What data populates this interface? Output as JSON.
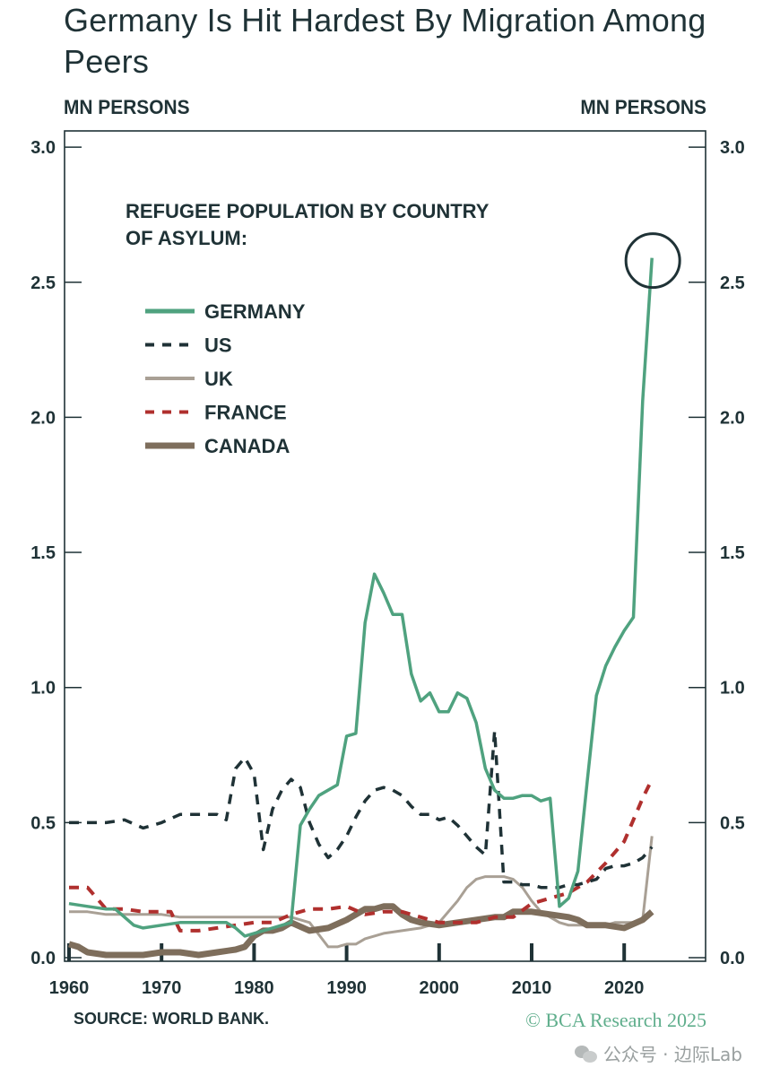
{
  "header": {
    "title": "Germany Is Hit Hardest By Migration Among Peers",
    "left_unit": "MN PERSONS",
    "right_unit": "MN PERSONS"
  },
  "footer": {
    "source": "SOURCE: WORLD BANK.",
    "copyright": "© BCA Research 2025",
    "watermark": "公众号 · 边际Lab",
    "watermark_icon": "wechat-icon"
  },
  "chart_data": {
    "type": "line",
    "title": "Germany Is Hit Hardest By Migration Among Peers",
    "legend_title": "REFUGEE POPULATION BY COUNTRY OF ASYLUM:",
    "legend_placement": "top-left",
    "xlabel": "",
    "ylabel": "MN PERSONS",
    "ylabel_right": "MN PERSONS",
    "xlim": [
      1960,
      2023
    ],
    "ylim": [
      0,
      3.0
    ],
    "x_ticks": [
      1960,
      1970,
      1980,
      1990,
      2000,
      2010,
      2020
    ],
    "y_ticks": [
      "0.0",
      "0.5",
      "1.0",
      "1.5",
      "2.0",
      "2.5",
      "3.0"
    ],
    "grid": false,
    "annotations": [
      {
        "type": "circle",
        "target": "GERMANY",
        "x": 2023,
        "y": 2.59
      }
    ],
    "series": [
      {
        "name": "GERMANY",
        "color": "#4fa27f",
        "style": "solid",
        "x": [
          1960,
          1962,
          1964,
          1965,
          1966,
          1967,
          1968,
          1970,
          1972,
          1974,
          1976,
          1977,
          1978,
          1979,
          1980,
          1981,
          1982,
          1983,
          1984,
          1985,
          1986,
          1987,
          1988,
          1989,
          1990,
          1991,
          1992,
          1993,
          1994,
          1995,
          1996,
          1997,
          1998,
          1999,
          2000,
          2001,
          2002,
          2003,
          2004,
          2005,
          2006,
          2007,
          2008,
          2009,
          2010,
          2011,
          2012,
          2013,
          2014,
          2015,
          2016,
          2017,
          2018,
          2019,
          2020,
          2021,
          2022,
          2023
        ],
        "values": [
          0.2,
          0.19,
          0.18,
          0.18,
          0.15,
          0.12,
          0.11,
          0.12,
          0.13,
          0.13,
          0.13,
          0.13,
          0.11,
          0.08,
          0.09,
          0.1,
          0.11,
          0.12,
          0.13,
          0.49,
          0.55,
          0.6,
          0.62,
          0.64,
          0.82,
          0.83,
          1.24,
          1.42,
          1.35,
          1.27,
          1.27,
          1.05,
          0.95,
          0.98,
          0.91,
          0.91,
          0.98,
          0.96,
          0.87,
          0.7,
          0.62,
          0.59,
          0.59,
          0.6,
          0.6,
          0.58,
          0.59,
          0.19,
          0.22,
          0.32,
          0.65,
          0.97,
          1.08,
          1.15,
          1.21,
          1.26,
          2.06,
          2.59
        ]
      },
      {
        "name": "US",
        "color": "#1f3236",
        "style": "dashed",
        "x": [
          1960,
          1962,
          1964,
          1966,
          1968,
          1970,
          1972,
          1974,
          1976,
          1977,
          1978,
          1979,
          1980,
          1981,
          1982,
          1983,
          1984,
          1985,
          1986,
          1987,
          1988,
          1989,
          1990,
          1991,
          1992,
          1993,
          1994,
          1995,
          1996,
          1997,
          1998,
          1999,
          2000,
          2001,
          2002,
          2003,
          2004,
          2005,
          2006,
          2007,
          2008,
          2009,
          2010,
          2011,
          2012,
          2013,
          2014,
          2015,
          2016,
          2017,
          2018,
          2019,
          2020,
          2021,
          2022,
          2023
        ],
        "values": [
          0.5,
          0.5,
          0.5,
          0.51,
          0.48,
          0.5,
          0.53,
          0.53,
          0.53,
          0.51,
          0.7,
          0.74,
          0.68,
          0.4,
          0.55,
          0.62,
          0.66,
          0.63,
          0.5,
          0.42,
          0.37,
          0.4,
          0.45,
          0.52,
          0.58,
          0.62,
          0.63,
          0.62,
          0.6,
          0.56,
          0.53,
          0.53,
          0.51,
          0.52,
          0.49,
          0.45,
          0.41,
          0.38,
          0.84,
          0.28,
          0.28,
          0.27,
          0.27,
          0.26,
          0.26,
          0.26,
          0.27,
          0.27,
          0.28,
          0.29,
          0.33,
          0.34,
          0.34,
          0.35,
          0.37,
          0.41
        ]
      },
      {
        "name": "UK",
        "color": "#a9a095",
        "style": "solid",
        "x": [
          1960,
          1962,
          1964,
          1966,
          1968,
          1970,
          1972,
          1974,
          1976,
          1978,
          1980,
          1982,
          1984,
          1986,
          1988,
          1989,
          1990,
          1991,
          1992,
          1994,
          1996,
          1998,
          2000,
          2002,
          2003,
          2004,
          2005,
          2006,
          2007,
          2008,
          2009,
          2010,
          2011,
          2012,
          2013,
          2014,
          2015,
          2016,
          2017,
          2018,
          2019,
          2020,
          2021,
          2022,
          2023
        ],
        "values": [
          0.17,
          0.17,
          0.16,
          0.16,
          0.16,
          0.16,
          0.15,
          0.15,
          0.15,
          0.15,
          0.15,
          0.15,
          0.15,
          0.13,
          0.04,
          0.04,
          0.05,
          0.05,
          0.07,
          0.09,
          0.1,
          0.11,
          0.13,
          0.21,
          0.26,
          0.29,
          0.3,
          0.3,
          0.3,
          0.29,
          0.26,
          0.21,
          0.17,
          0.15,
          0.13,
          0.12,
          0.12,
          0.12,
          0.12,
          0.12,
          0.13,
          0.13,
          0.13,
          0.14,
          0.45
        ]
      },
      {
        "name": "FRANCE",
        "color": "#b0302e",
        "style": "dashed",
        "x": [
          1960,
          1962,
          1963,
          1964,
          1966,
          1968,
          1970,
          1971,
          1972,
          1974,
          1976,
          1978,
          1980,
          1982,
          1984,
          1986,
          1988,
          1990,
          1992,
          1994,
          1996,
          1998,
          2000,
          2002,
          2004,
          2006,
          2008,
          2010,
          2012,
          2014,
          2016,
          2018,
          2020,
          2022,
          2023
        ],
        "values": [
          0.26,
          0.26,
          0.22,
          0.18,
          0.18,
          0.17,
          0.17,
          0.17,
          0.1,
          0.1,
          0.11,
          0.12,
          0.13,
          0.13,
          0.16,
          0.18,
          0.18,
          0.19,
          0.16,
          0.17,
          0.17,
          0.15,
          0.13,
          0.13,
          0.13,
          0.15,
          0.15,
          0.2,
          0.22,
          0.24,
          0.28,
          0.35,
          0.43,
          0.59,
          0.66
        ]
      },
      {
        "name": "CANADA",
        "color": "#7e6e5c",
        "style": "solid-thick",
        "x": [
          1960,
          1961,
          1962,
          1964,
          1966,
          1968,
          1970,
          1972,
          1974,
          1976,
          1978,
          1979,
          1980,
          1981,
          1982,
          1983,
          1984,
          1986,
          1988,
          1990,
          1991,
          1992,
          1993,
          1994,
          1995,
          1996,
          1997,
          1998,
          2000,
          2002,
          2004,
          2006,
          2007,
          2008,
          2010,
          2012,
          2014,
          2015,
          2016,
          2018,
          2020,
          2022,
          2023
        ],
        "values": [
          0.05,
          0.04,
          0.02,
          0.01,
          0.01,
          0.01,
          0.02,
          0.02,
          0.01,
          0.02,
          0.03,
          0.04,
          0.08,
          0.1,
          0.1,
          0.11,
          0.13,
          0.1,
          0.11,
          0.14,
          0.16,
          0.18,
          0.18,
          0.19,
          0.19,
          0.16,
          0.14,
          0.13,
          0.12,
          0.13,
          0.14,
          0.15,
          0.15,
          0.17,
          0.17,
          0.16,
          0.15,
          0.14,
          0.12,
          0.12,
          0.11,
          0.14,
          0.17
        ]
      }
    ]
  }
}
